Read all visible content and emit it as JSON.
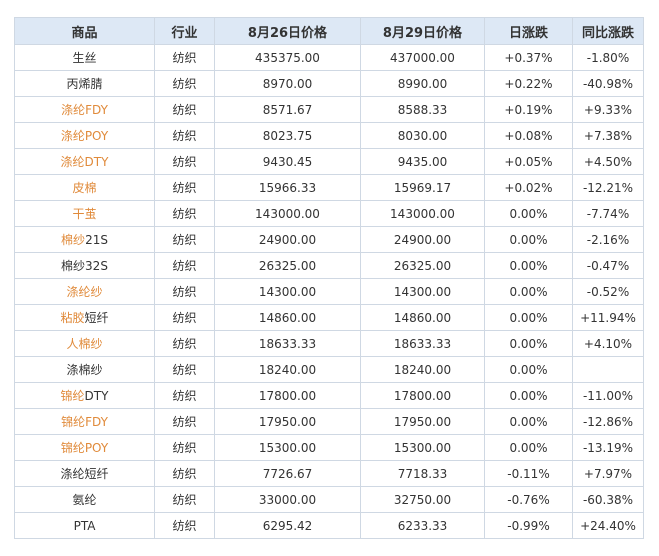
{
  "table": {
    "headers": [
      "商品",
      "行业",
      "8月26日价格",
      "8月29日价格",
      "日涨跌",
      "同比涨跌"
    ],
    "colors": {
      "linked_name": "#e08a3a",
      "rise": "#d03030",
      "fall": "#1e9a2e",
      "header_bg": "#dde8f5"
    },
    "rows": [
      {
        "name": "生丝",
        "linked": false,
        "industry": "纺织",
        "price_aug26": "435375.00",
        "price_aug29": "437000.00",
        "daily_change": "+0.37%",
        "yoy_change": "-1.80%"
      },
      {
        "name": "丙烯腈",
        "linked": false,
        "industry": "纺织",
        "price_aug26": "8970.00",
        "price_aug29": "8990.00",
        "daily_change": "+0.22%",
        "yoy_change": "-40.98%"
      },
      {
        "name": "涤纶FDY",
        "linked": true,
        "industry": "纺织",
        "price_aug26": "8571.67",
        "price_aug29": "8588.33",
        "daily_change": "+0.19%",
        "yoy_change": "+9.33%"
      },
      {
        "name": "涤纶POY",
        "linked": true,
        "industry": "纺织",
        "price_aug26": "8023.75",
        "price_aug29": "8030.00",
        "daily_change": "+0.08%",
        "yoy_change": "+7.38%"
      },
      {
        "name": "涤纶DTY",
        "linked": true,
        "industry": "纺织",
        "price_aug26": "9430.45",
        "price_aug29": "9435.00",
        "daily_change": "+0.05%",
        "yoy_change": "+4.50%"
      },
      {
        "name": "皮棉",
        "linked": true,
        "industry": "纺织",
        "price_aug26": "15966.33",
        "price_aug29": "15969.17",
        "daily_change": "+0.02%",
        "yoy_change": "-12.21%"
      },
      {
        "name": "干茧",
        "linked": true,
        "industry": "纺织",
        "price_aug26": "143000.00",
        "price_aug29": "143000.00",
        "daily_change": "0.00%",
        "yoy_change": "-7.74%"
      },
      {
        "name": "棉纱21S",
        "linked": "partial",
        "industry": "纺织",
        "price_aug26": "24900.00",
        "price_aug29": "24900.00",
        "daily_change": "0.00%",
        "yoy_change": "-2.16%"
      },
      {
        "name": "棉纱32S",
        "linked": false,
        "industry": "纺织",
        "price_aug26": "26325.00",
        "price_aug29": "26325.00",
        "daily_change": "0.00%",
        "yoy_change": "-0.47%"
      },
      {
        "name": "涤纶纱",
        "linked": true,
        "industry": "纺织",
        "price_aug26": "14300.00",
        "price_aug29": "14300.00",
        "daily_change": "0.00%",
        "yoy_change": "-0.52%"
      },
      {
        "name": "粘胶短纤",
        "linked": "partial",
        "industry": "纺织",
        "price_aug26": "14860.00",
        "price_aug29": "14860.00",
        "daily_change": "0.00%",
        "yoy_change": "+11.94%"
      },
      {
        "name": "人棉纱",
        "linked": true,
        "industry": "纺织",
        "price_aug26": "18633.33",
        "price_aug29": "18633.33",
        "daily_change": "0.00%",
        "yoy_change": "+4.10%"
      },
      {
        "name": "涤棉纱",
        "linked": false,
        "industry": "纺织",
        "price_aug26": "18240.00",
        "price_aug29": "18240.00",
        "daily_change": "0.00%",
        "yoy_change": ""
      },
      {
        "name": "锦纶DTY",
        "linked": "partial",
        "industry": "纺织",
        "price_aug26": "17800.00",
        "price_aug29": "17800.00",
        "daily_change": "0.00%",
        "yoy_change": "-11.00%"
      },
      {
        "name": "锦纶FDY",
        "linked": true,
        "industry": "纺织",
        "price_aug26": "17950.00",
        "price_aug29": "17950.00",
        "daily_change": "0.00%",
        "yoy_change": "-12.86%"
      },
      {
        "name": "锦纶POY",
        "linked": true,
        "industry": "纺织",
        "price_aug26": "15300.00",
        "price_aug29": "15300.00",
        "daily_change": "0.00%",
        "yoy_change": "-13.19%"
      },
      {
        "name": "涤纶短纤",
        "linked": false,
        "industry": "纺织",
        "price_aug26": "7726.67",
        "price_aug29": "7718.33",
        "daily_change": "-0.11%",
        "yoy_change": "+7.97%"
      },
      {
        "name": "氨纶",
        "linked": false,
        "industry": "纺织",
        "price_aug26": "33000.00",
        "price_aug29": "32750.00",
        "daily_change": "-0.76%",
        "yoy_change": "-60.38%"
      },
      {
        "name": "PTA",
        "linked": false,
        "industry": "纺织",
        "price_aug26": "6295.42",
        "price_aug29": "6233.33",
        "daily_change": "-0.99%",
        "yoy_change": "+24.40%"
      }
    ]
  }
}
